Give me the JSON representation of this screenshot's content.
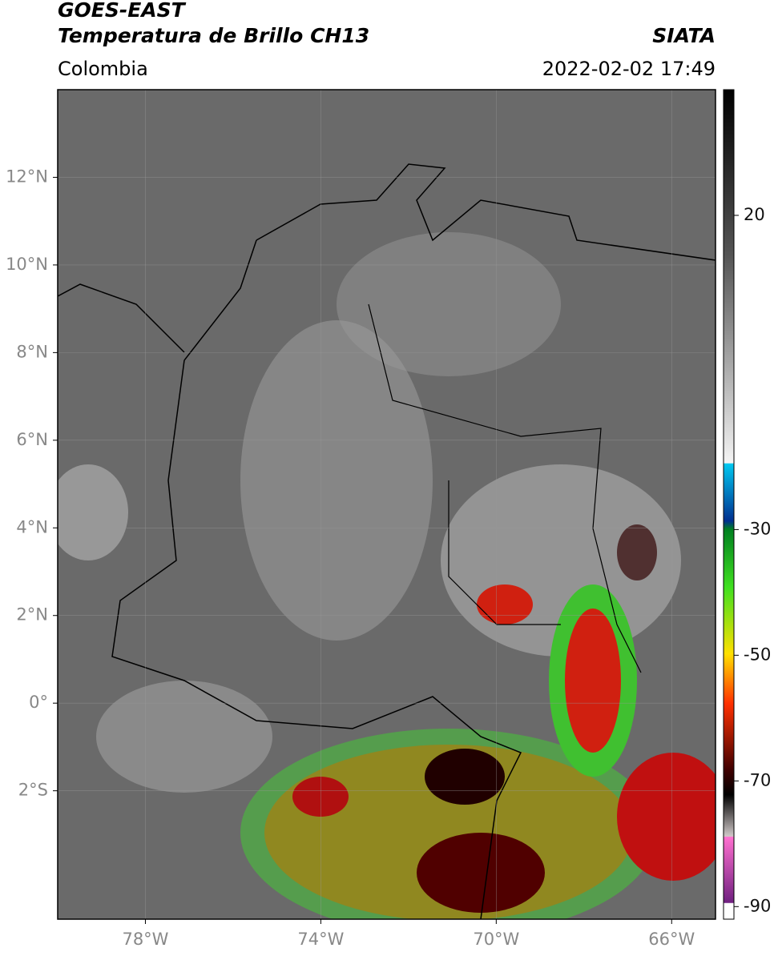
{
  "header": {
    "title": "GOES-EAST",
    "subtitle": "Temperatura de Brillo CH13",
    "source": "SIATA",
    "region": "Colombia",
    "datetime": "2022-02-02 17:49"
  },
  "map": {
    "xlim": [
      -80,
      -65
    ],
    "ylim": [
      -4.93,
      14
    ],
    "xticks": [
      {
        "value": -78,
        "label": "78°W"
      },
      {
        "value": -74,
        "label": "74°W"
      },
      {
        "value": -70,
        "label": "70°W"
      },
      {
        "value": -66,
        "label": "66°W"
      }
    ],
    "yticks": [
      {
        "value": 12,
        "label": "12°N"
      },
      {
        "value": 10,
        "label": "10°N"
      },
      {
        "value": 8,
        "label": "8°N"
      },
      {
        "value": 6,
        "label": "6°N"
      },
      {
        "value": 4,
        "label": "4°N"
      },
      {
        "value": 2,
        "label": "2°N"
      },
      {
        "value": 0,
        "label": "0°"
      },
      {
        "value": -2,
        "label": "2°S"
      }
    ],
    "grid": true
  },
  "colorbar": {
    "lim": [
      -92,
      40
    ],
    "ticks": [
      20,
      -30,
      -50,
      -70,
      -90
    ]
  }
}
